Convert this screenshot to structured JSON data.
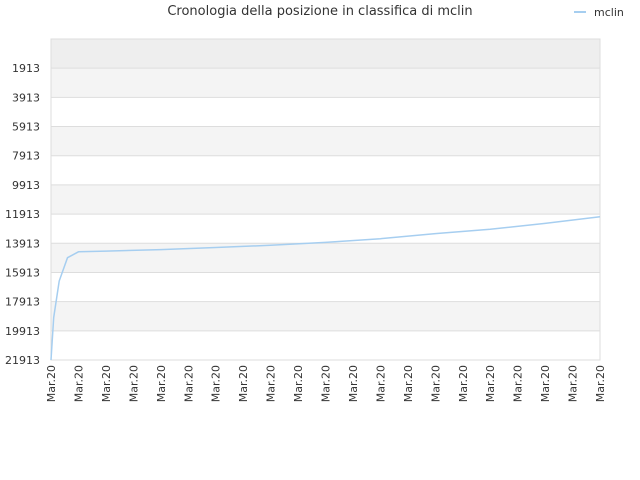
{
  "chart_data": {
    "type": "line",
    "title": "Cronologia della posizione in classifica di mclin",
    "xlabel": "",
    "ylabel": "",
    "y_reversed": true,
    "ylim": [
      21913,
      -87
    ],
    "y_ticks": [
      1913,
      3913,
      5913,
      7913,
      9913,
      11913,
      13913,
      15913,
      17913,
      19913,
      21913
    ],
    "x_tick_labels": [
      "Mar.20",
      "Mar.20",
      "Mar.20",
      "Mar.20",
      "Mar.20",
      "Mar.20",
      "Mar.20",
      "Mar.20",
      "Mar.20",
      "Mar.20",
      "Mar.20",
      "Mar.20",
      "Mar.20",
      "Mar.20",
      "Mar.20",
      "Mar.20",
      "Mar.20",
      "Mar.20",
      "Mar.20",
      "Mar.20",
      "Mar.20"
    ],
    "grid": true,
    "legend_position": "top-right",
    "series": [
      {
        "name": "mclin",
        "color": "#a6cef0",
        "x": [
          0,
          0.1,
          0.3,
          0.6,
          1,
          2,
          4,
          6,
          8,
          10,
          12,
          14,
          16,
          18,
          20
        ],
        "y": [
          21913,
          19000,
          16500,
          14900,
          14500,
          14450,
          14350,
          14200,
          14050,
          13850,
          13600,
          13250,
          12950,
          12550,
          12100
        ]
      }
    ]
  }
}
